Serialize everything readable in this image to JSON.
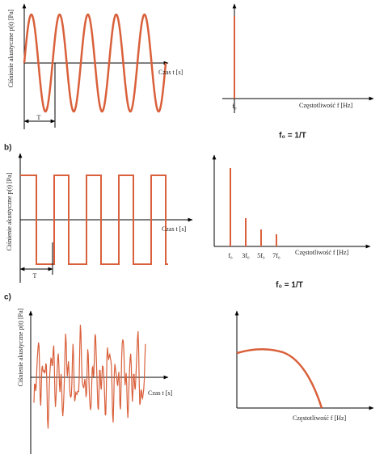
{
  "panel_a": {
    "y_axis_label": "Ciśnienie akustyczne p(t) [Pa]",
    "x_axis_label": "Czas t [s]",
    "period_label": "T",
    "freq_axis_label": "Częstotliwość f [Hz]",
    "freq_ticks": [
      "f₀"
    ],
    "formula": "f₀ = 1/T"
  },
  "panel_b": {
    "label": "b)",
    "y_axis_label": "Ciśnienie akustyczne p(t) [Pa]",
    "x_axis_label": "Czas t [s]",
    "period_label": "T",
    "freq_axis_label": "Częstotliwość f [Hz]",
    "freq_ticks": [
      "f₀",
      "3f₀",
      "5f₀",
      "7f₀"
    ],
    "formula": "f₀ = 1/T"
  },
  "panel_c": {
    "label": "c)",
    "y_axis_label": "Ciśnienie akustyczne p(t) [Pa]",
    "x_axis_label": "Czas t [s]",
    "freq_axis_label": "Częstotliwość f [Hz]"
  }
}
